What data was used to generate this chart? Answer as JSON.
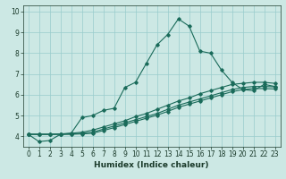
{
  "xlabel": "Humidex (Indice chaleur)",
  "background_color": "#cce8e4",
  "grid_color": "#99cccc",
  "line_color": "#1a6b5a",
  "line1_x": [
    0,
    1,
    2,
    3,
    4,
    5,
    6,
    7,
    8,
    9,
    10,
    11,
    12,
    13,
    14,
    15,
    16,
    17,
    18,
    19,
    20,
    21,
    22,
    23
  ],
  "line1_y": [
    4.1,
    3.75,
    3.8,
    4.1,
    4.15,
    4.9,
    5.0,
    5.25,
    5.35,
    6.35,
    6.6,
    7.5,
    8.4,
    8.9,
    9.65,
    9.3,
    8.1,
    8.0,
    7.2,
    6.6,
    6.25,
    6.2,
    6.5,
    6.4
  ],
  "line2_x": [
    0,
    1,
    2,
    3,
    4,
    5,
    6,
    7,
    8,
    9,
    10,
    11,
    12,
    13,
    14,
    15,
    16,
    17,
    18,
    19,
    20,
    21,
    22,
    23
  ],
  "line2_y": [
    4.1,
    4.1,
    4.1,
    4.12,
    4.15,
    4.2,
    4.3,
    4.45,
    4.6,
    4.75,
    4.95,
    5.1,
    5.3,
    5.5,
    5.7,
    5.85,
    6.05,
    6.2,
    6.35,
    6.5,
    6.55,
    6.6,
    6.6,
    6.55
  ],
  "line3_x": [
    0,
    1,
    2,
    3,
    4,
    5,
    6,
    7,
    8,
    9,
    10,
    11,
    12,
    13,
    14,
    15,
    16,
    17,
    18,
    19,
    20,
    21,
    22,
    23
  ],
  "line3_y": [
    4.1,
    4.1,
    4.1,
    4.1,
    4.12,
    4.15,
    4.2,
    4.35,
    4.5,
    4.65,
    4.8,
    4.95,
    5.1,
    5.3,
    5.5,
    5.65,
    5.8,
    5.95,
    6.1,
    6.25,
    6.35,
    6.4,
    6.4,
    6.38
  ],
  "line4_x": [
    0,
    1,
    2,
    3,
    4,
    5,
    6,
    7,
    8,
    9,
    10,
    11,
    12,
    13,
    14,
    15,
    16,
    17,
    18,
    19,
    20,
    21,
    22,
    23
  ],
  "line4_y": [
    4.1,
    4.1,
    4.1,
    4.1,
    4.1,
    4.12,
    4.15,
    4.28,
    4.42,
    4.57,
    4.72,
    4.87,
    5.02,
    5.2,
    5.4,
    5.55,
    5.7,
    5.85,
    6.0,
    6.15,
    6.25,
    6.3,
    6.3,
    6.28
  ],
  "xlim": [
    -0.5,
    23.5
  ],
  "ylim": [
    3.5,
    10.3
  ],
  "xticks": [
    0,
    1,
    2,
    3,
    4,
    5,
    6,
    7,
    8,
    9,
    10,
    11,
    12,
    13,
    14,
    15,
    16,
    17,
    18,
    19,
    20,
    21,
    22,
    23
  ],
  "yticks": [
    4,
    5,
    6,
    7,
    8,
    9,
    10
  ],
  "tick_fontsize": 5.5,
  "xlabel_fontsize": 6.5
}
